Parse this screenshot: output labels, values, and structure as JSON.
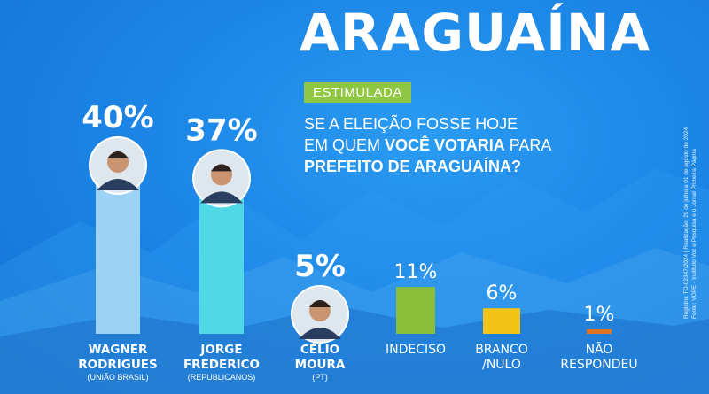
{
  "header": {
    "city": "ARAGUAÍNA",
    "badge": "ESTIMULADA",
    "question": {
      "line1": "SE A ELEIÇÃO FOSSE HOJE",
      "line2_pre": "EM QUEM ",
      "line2_bold": "VOCÊ VOTARIA",
      "line2_post": " PARA",
      "line3_bold": "PREFEITO DE ARAGUAÍNA?"
    }
  },
  "side_note": {
    "line1": "Registro: TO-02347/2024 | Realização: 29 de julho a 01 de agosto de 2024",
    "line2": "Fonte: VOPE - Instituto Voz e Pesquisa e o Jornal Primeira Página"
  },
  "chart_data": {
    "type": "bar",
    "unit": "%",
    "ylim": [
      0,
      40
    ],
    "categories": [
      {
        "lines": [
          "WAGNER",
          "RODRIGUES"
        ],
        "party": "(UNIÃO BRASIL)",
        "value": 40,
        "label": "40%",
        "color": "#9dd2f7",
        "photo": true,
        "style": "candidate"
      },
      {
        "lines": [
          "JORGE",
          "FREDERICO"
        ],
        "party": "(REPUBLICANOS)",
        "value": 37,
        "label": "37%",
        "color": "#4fd9e6",
        "photo": true,
        "style": "candidate"
      },
      {
        "lines": [
          "CÉLIO",
          "MOURA"
        ],
        "party": "(PT)",
        "value": 5,
        "label": "5%",
        "color": "#1f6fca",
        "photo": true,
        "style": "candidate"
      },
      {
        "lines": [
          "INDECISO"
        ],
        "party": "",
        "value": 11,
        "label": "11%",
        "color": "#8bbf3a",
        "photo": false,
        "style": "other"
      },
      {
        "lines": [
          "BRANCO",
          "/NULO"
        ],
        "party": "",
        "value": 6,
        "label": "6%",
        "color": "#f2c318",
        "photo": false,
        "style": "other"
      },
      {
        "lines": [
          "NÃO",
          "RESPONDEU"
        ],
        "party": "",
        "value": 1,
        "label": "1%",
        "color": "#e0731f",
        "photo": false,
        "style": "other"
      }
    ]
  }
}
